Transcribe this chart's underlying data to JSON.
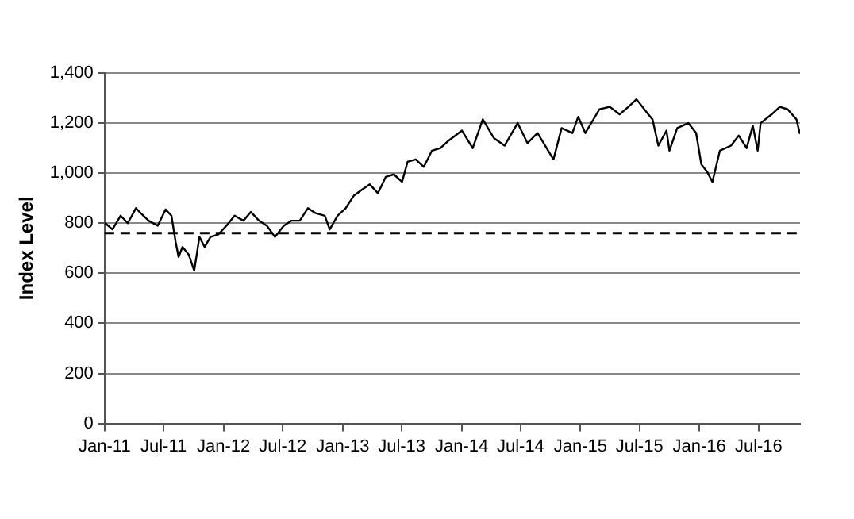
{
  "chart_data": {
    "type": "line",
    "ylabel": "Index Level",
    "x": [
      "2011-01-03",
      "2011-01-25",
      "2011-02-19",
      "2011-03-13",
      "2011-04-07",
      "2011-04-22",
      "2011-05-16",
      "2011-06-13",
      "2011-07-07",
      "2011-07-25",
      "2011-08-07",
      "2011-08-16",
      "2011-08-28",
      "2011-09-16",
      "2011-10-03",
      "2011-10-19",
      "2011-11-04",
      "2011-11-22",
      "2011-12-16",
      "2012-01-10",
      "2012-02-04",
      "2012-03-02",
      "2012-03-25",
      "2012-04-19",
      "2012-05-13",
      "2012-06-07",
      "2012-07-04",
      "2012-07-28",
      "2012-08-22",
      "2012-09-16",
      "2012-10-10",
      "2012-11-07",
      "2012-11-22",
      "2012-12-16",
      "2013-01-10",
      "2013-02-04",
      "2013-03-02",
      "2013-03-25",
      "2013-04-19",
      "2013-05-13",
      "2013-06-07",
      "2013-07-02",
      "2013-07-19",
      "2013-08-13",
      "2013-09-07",
      "2013-10-02",
      "2013-10-28",
      "2013-11-22",
      "2014-01-02",
      "2014-02-04",
      "2014-03-07",
      "2014-04-10",
      "2014-05-13",
      "2014-06-22",
      "2014-07-22",
      "2014-08-22",
      "2014-10-10",
      "2014-11-04",
      "2014-12-07",
      "2014-12-25",
      "2015-01-16",
      "2015-02-28",
      "2015-04-01",
      "2015-05-01",
      "2015-05-28",
      "2015-06-22",
      "2015-07-28",
      "2015-08-10",
      "2015-08-28",
      "2015-09-22",
      "2015-10-01",
      "2015-10-25",
      "2015-11-28",
      "2015-12-22",
      "2016-01-07",
      "2016-01-25",
      "2016-02-10",
      "2016-03-04",
      "2016-04-07",
      "2016-05-01",
      "2016-05-25",
      "2016-06-13",
      "2016-06-28",
      "2016-07-07",
      "2016-08-10",
      "2016-09-04",
      "2016-09-28",
      "2016-10-25",
      "2016-11-04"
    ],
    "series": [
      {
        "color": "#000000",
        "values": [
          800,
          775,
          830,
          800,
          860,
          840,
          810,
          790,
          855,
          830,
          725,
          665,
          705,
          675,
          610,
          745,
          705,
          745,
          755,
          790,
          830,
          810,
          845,
          810,
          790,
          745,
          790,
          810,
          810,
          860,
          840,
          830,
          775,
          830,
          860,
          910,
          935,
          955,
          920,
          985,
          995,
          965,
          1045,
          1055,
          1025,
          1090,
          1100,
          1130,
          1170,
          1100,
          1215,
          1140,
          1110,
          1200,
          1120,
          1160,
          1055,
          1180,
          1160,
          1225,
          1160,
          1255,
          1265,
          1235,
          1265,
          1295,
          1235,
          1215,
          1110,
          1170,
          1090,
          1180,
          1200,
          1160,
          1035,
          1005,
          965,
          1090,
          1110,
          1150,
          1100,
          1190,
          1090,
          1200,
          1235,
          1265,
          1255,
          1215,
          1160
        ]
      }
    ],
    "xlim": [
      "2011-01-01",
      "2016-11-05"
    ],
    "xticks": [
      {
        "value": "2011-01",
        "label": "Jan-11"
      },
      {
        "value": "2011-07",
        "label": "Jul-11"
      },
      {
        "value": "2012-01",
        "label": "Jan-12"
      },
      {
        "value": "2012-07",
        "label": "Jul-12"
      },
      {
        "value": "2013-01",
        "label": "Jan-13"
      },
      {
        "value": "2013-07",
        "label": "Jul-13"
      },
      {
        "value": "2014-01",
        "label": "Jan-14"
      },
      {
        "value": "2014-07",
        "label": "Jul-14"
      },
      {
        "value": "2015-01",
        "label": "Jan-15"
      },
      {
        "value": "2015-07",
        "label": "Jul-15"
      },
      {
        "value": "2016-01",
        "label": "Jan-16"
      },
      {
        "value": "2016-07",
        "label": "Jul-16"
      }
    ],
    "ylim": [
      0,
      1400
    ],
    "yticks": [
      0,
      200,
      400,
      600,
      800,
      {
        "value": 1000,
        "label": "1,000"
      },
      {
        "value": 1200,
        "label": "1,200"
      },
      {
        "value": 1400,
        "label": "1,400"
      }
    ],
    "grid": "y",
    "legend": false,
    "marker": "none",
    "line_style": "solid",
    "ref_lines": [
      {
        "axis": "y",
        "value": 760,
        "color": "#000000",
        "line_style": "dashed"
      }
    ]
  }
}
